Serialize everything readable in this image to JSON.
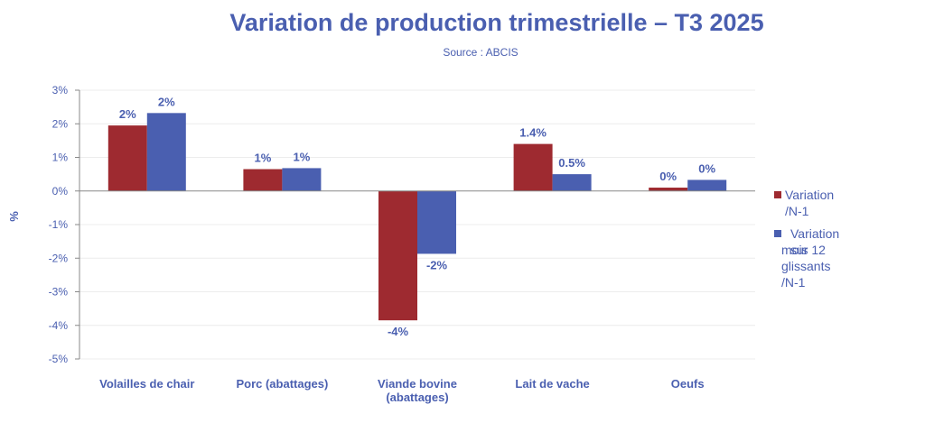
{
  "chart_data": {
    "type": "bar",
    "title": "Variation de production trimestrielle – T3 2025",
    "subtitle": "Source : ABCIS",
    "ylabel": "%",
    "xlabel": "",
    "ylim": [
      -5,
      3
    ],
    "yticks": [
      3,
      2,
      1,
      0,
      -1,
      -2,
      -3,
      -4,
      -5
    ],
    "ytick_labels": [
      "3%",
      "2%",
      "1%",
      "0%",
      "-1%",
      "-2%",
      "-3%",
      "-4%",
      "-5%"
    ],
    "grid": true,
    "legend_position": "right",
    "categories": [
      [
        "Volailles de chair"
      ],
      [
        "Porc (abattages)"
      ],
      [
        "Viande bovine",
        "(abattages)"
      ],
      [
        "Lait de vache"
      ],
      [
        "Oeufs"
      ]
    ],
    "series": [
      {
        "name": "Variation /N-1",
        "color": "#9e2a30",
        "values": [
          1.95,
          0.65,
          -3.85,
          1.4,
          0.1
        ],
        "labels": [
          "2%",
          "1%",
          "-4%",
          "1.4%",
          "0%"
        ]
      },
      {
        "name": "Variation sur 12 mois glissants /N-1",
        "legend_lines": [
          "Variation sur 12",
          "mois glissants /N-1"
        ],
        "color": "#4a5fb0",
        "values": [
          2.32,
          0.68,
          -1.87,
          0.5,
          0.33
        ],
        "labels": [
          "2%",
          "1%",
          "-2%",
          "0.5%",
          "0%"
        ]
      }
    ]
  }
}
